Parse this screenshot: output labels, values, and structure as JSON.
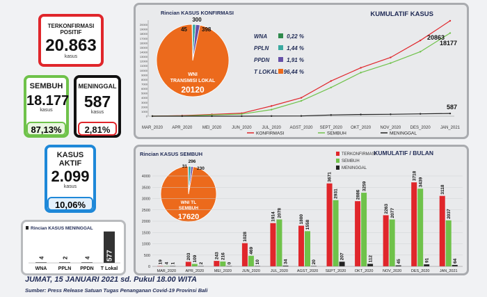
{
  "cards": {
    "positif": {
      "label1": "TERKONFIRMASI",
      "label2": "POSITIF",
      "value": "20.863",
      "unit": "kasus"
    },
    "sembuh": {
      "label": "SEMBUH",
      "value": "18.177",
      "unit": "kasus",
      "pct": "87,13%"
    },
    "meninggal": {
      "label": "MENINGGAL",
      "value": "587",
      "unit": "kasus",
      "pct": "2,81%"
    },
    "aktif": {
      "label1": "KASUS",
      "label2": "AKTIF",
      "value": "2.099",
      "unit": "kasus",
      "pct": "10,06%"
    }
  },
  "colors": {
    "red": "#e0262b",
    "green": "#6fc24a",
    "black": "#222222",
    "blue": "#1e88d8",
    "orange": "#ec6a1c",
    "teal": "#3aa9a0",
    "purple": "#6650a8",
    "darkgreen": "#2f8a4c"
  },
  "footer": {
    "date": "JUMAT, 15 JANUARI 2021 sd. Pukul 18.00 WITA",
    "source": "Sumber: Press Release Satuan Tugas Penanganan Covid-19 Provinsi Bali"
  },
  "chart_data": [
    {
      "type": "pie",
      "title": "Rincian KASUS KONFIRMASI",
      "slices": [
        {
          "label": "WNA",
          "value": 45,
          "pct": "0,22 %"
        },
        {
          "label": "PPLN",
          "value": 300,
          "pct": "1,44 %"
        },
        {
          "label": "PPDN",
          "value": 398,
          "pct": "1,91 %"
        },
        {
          "label": "T LOKAL",
          "value": 20120,
          "pct": "96,44 %"
        }
      ],
      "center_label1": "WNI",
      "center_label2": "TRANSMISI LOKAL",
      "center_value": "20120"
    },
    {
      "type": "line",
      "title": "KUMULATIF KASUS",
      "x_labels": [
        "MAR_2020",
        "APR_2020",
        "MEI_2020",
        "JUN_2020",
        "JUL_2020",
        "AGST_2020",
        "SEPT_2020",
        "OKT_2020",
        "NOV_2020",
        "DES_2020",
        "JAN_2021"
      ],
      "y_ticks": [
        "0",
        "1000",
        "2000",
        "3000",
        "4000",
        "5000",
        "6000",
        "7000",
        "8000",
        "9000",
        "10000",
        "11000",
        "12000",
        "13000",
        "14000",
        "15000",
        "16000",
        "17000",
        "18000",
        "19000",
        "20000"
      ],
      "ylim": [
        0,
        21000
      ],
      "series": [
        {
          "name": "KONFIRMASI",
          "values": [
            4,
            113,
            388,
            643,
            2227,
            4022,
            7693,
            10579,
            12842,
            16560,
            20863
          ],
          "end_label": "20863"
        },
        {
          "name": "SEMBUH",
          "values": [
            0,
            47,
            261,
            450,
            1428,
            3340,
            6271,
            9530,
            11607,
            14100,
            18177
          ],
          "end_label": "18177"
        },
        {
          "name": "MENINGGAL",
          "values": [
            0,
            2,
            4,
            4,
            25,
            47,
            254,
            366,
            411,
            502,
            587
          ],
          "end_label": "587"
        }
      ]
    },
    {
      "type": "pie",
      "title": "Rincian KASUS SEMBUH",
      "slices": [
        {
          "label": "WNA",
          "value": 31
        },
        {
          "label": "PPLN",
          "value": 296
        },
        {
          "label": "PPDN",
          "value": 230
        },
        {
          "label": "T LOKAL",
          "value": 17620
        }
      ],
      "center_label1": "WNI TL",
      "center_label2": "SEMBUH",
      "center_value": "17620"
    },
    {
      "type": "bar",
      "title": "KUMULATIF  /  BULAN",
      "categories": [
        "MAR_2020",
        "APR_2020",
        "MEI_2020",
        "JUN_2020",
        "JUL_2020",
        "AGST_2020",
        "SEPT_2020",
        "OKT_2020",
        "NOV_2020",
        "DES_2020",
        "JAN_2021"
      ],
      "y_ticks": [
        "0",
        "500",
        "1000",
        "1500",
        "2000",
        "2500",
        "3000",
        "3500",
        "4000"
      ],
      "ylim": [
        0,
        4000
      ],
      "series": [
        {
          "name": "TERKONFIRMASI",
          "values": [
            19,
            203,
            243,
            1028,
            1914,
            1800,
            3671,
            2886,
            2263,
            3718,
            3118
          ]
        },
        {
          "name": "SEMBUH",
          "values": [
            4,
            109,
            216,
            469,
            2078,
            1558,
            2931,
            3259,
            2077,
            3439,
            2037
          ]
        },
        {
          "name": "MENINGGAL",
          "values": [
            1,
            2,
            0,
            10,
            34,
            20,
            207,
            112,
            45,
            91,
            64
          ]
        }
      ]
    },
    {
      "type": "bar",
      "title": "Rincian KASUS MENINGGAL",
      "categories": [
        "WNA",
        "PPLN",
        "PPDN",
        "T Lokal"
      ],
      "values": [
        4,
        2,
        4,
        577
      ],
      "ylim": [
        0,
        600
      ]
    }
  ]
}
